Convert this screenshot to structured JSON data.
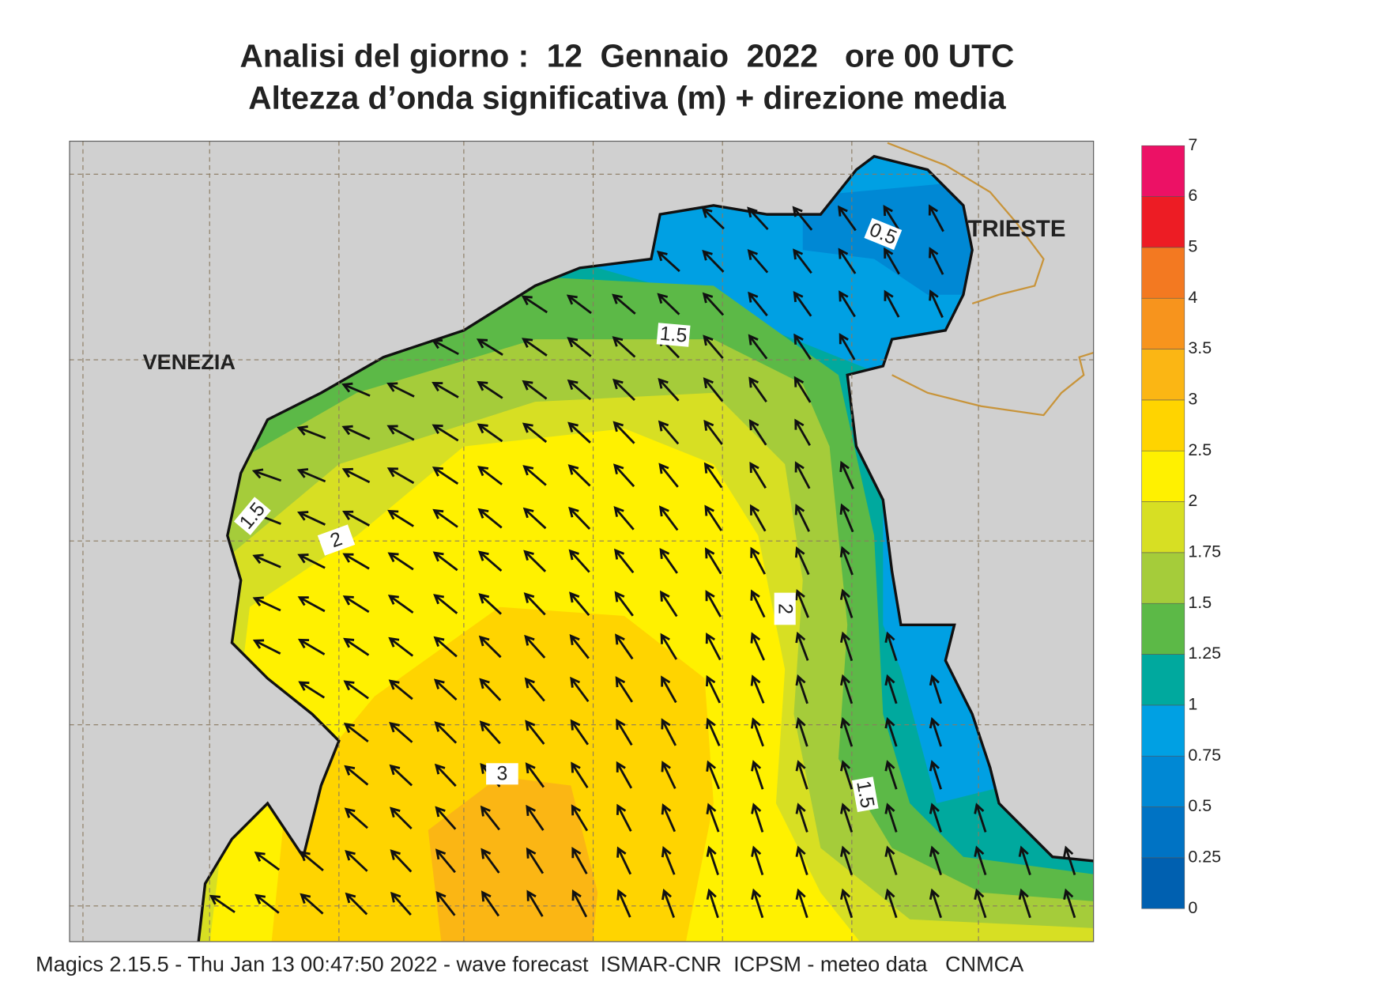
{
  "title": {
    "line1": "Analisi del giorno :  12  Gennaio  2022   ore 00 UTC",
    "line2": "Altezza d’onda significativa (m) + direzione media"
  },
  "places": {
    "venezia": "VENEZIA",
    "trieste": "TRIESTE"
  },
  "contour_labels": [
    0.5,
    1.5,
    1.5,
    2,
    2,
    3,
    1.5
  ],
  "colorbar": {
    "levels": [
      0,
      0.25,
      0.5,
      0.75,
      1,
      1.25,
      1.5,
      1.75,
      2,
      2.5,
      3,
      3.5,
      4,
      5,
      6,
      7
    ],
    "colors": [
      "#0060b0",
      "#0073c4",
      "#0088d4",
      "#00a0e3",
      "#00a99e",
      "#5cb947",
      "#a5cc3a",
      "#d7df23",
      "#fff100",
      "#ffd400",
      "#fbb614",
      "#f7941d",
      "#f37921",
      "#ed1c24",
      "#ec1165"
    ]
  },
  "footer": "Magics 2.15.5 - Thu Jan 13 00:47:50 2022 - wave forecast  ISMAR-CNR  ICPSM - meteo data   CNMCA"
}
